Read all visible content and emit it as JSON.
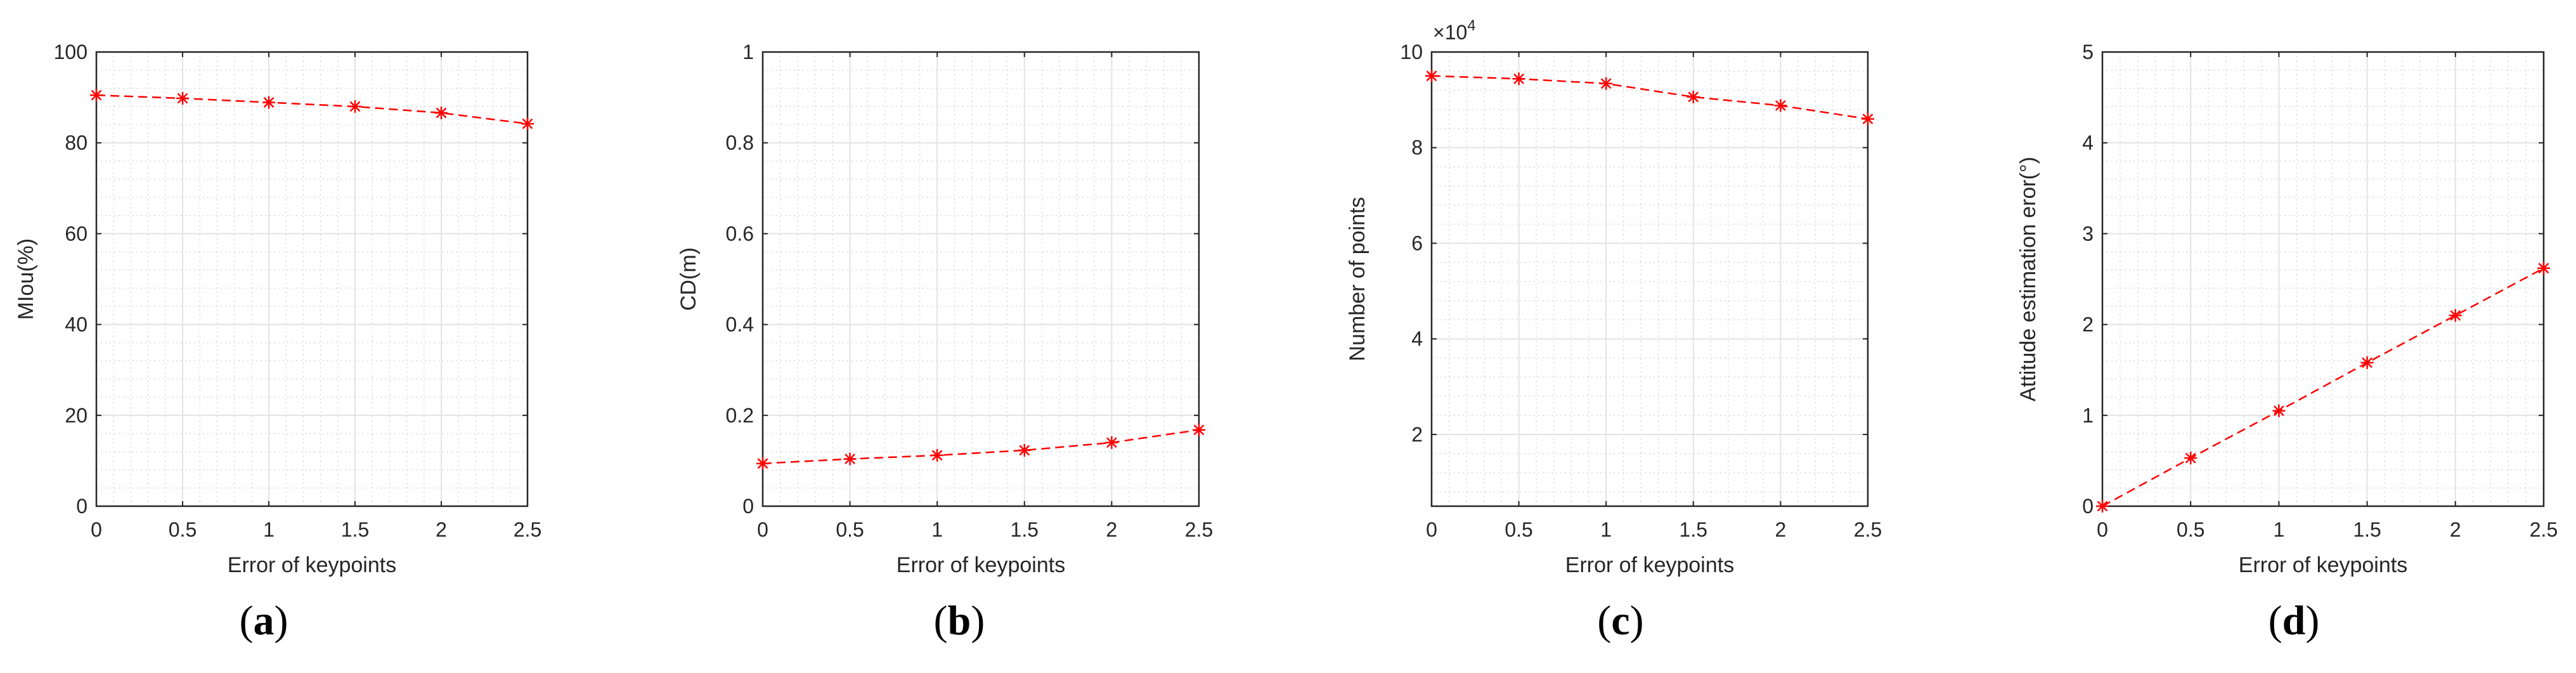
{
  "figure": {
    "series_color": "#ff0000",
    "panels": [
      "a",
      "b",
      "c",
      "d"
    ]
  },
  "chart_data": [
    {
      "type": "line",
      "panel": "a",
      "caption": "(a)",
      "caption_parts": [
        "(",
        "a",
        ")"
      ],
      "xlabel": "Error of keypoints",
      "ylabel": "MIou(%)",
      "x": [
        0,
        0.5,
        1,
        1.5,
        2,
        2.5
      ],
      "y": [
        90.5,
        89.8,
        88.9,
        88.0,
        86.6,
        84.2
      ],
      "xlim": [
        0,
        2.5
      ],
      "ylim": [
        0,
        100
      ],
      "xticks": [
        0,
        0.5,
        1,
        1.5,
        2,
        2.5
      ],
      "xtick_labels": [
        "0",
        "0.5",
        "1",
        "1.5",
        "2",
        "2.5"
      ],
      "yticks": [
        0,
        20,
        40,
        60,
        80,
        100
      ],
      "ytick_labels": [
        "0",
        "20",
        "40",
        "60",
        "80",
        "100"
      ],
      "exponent_label": "",
      "grid": true,
      "marker": "*",
      "line_style": "dashed"
    },
    {
      "type": "line",
      "panel": "b",
      "caption": "(b)",
      "caption_parts": [
        "(",
        "b",
        ")"
      ],
      "xlabel": "Error of keypoints",
      "ylabel": "CD(m)",
      "x": [
        0,
        0.5,
        1,
        1.5,
        2,
        2.5
      ],
      "y": [
        0.094,
        0.104,
        0.112,
        0.123,
        0.14,
        0.168
      ],
      "xlim": [
        0,
        2.5
      ],
      "ylim": [
        0,
        1
      ],
      "xticks": [
        0,
        0.5,
        1,
        1.5,
        2,
        2.5
      ],
      "xtick_labels": [
        "0",
        "0.5",
        "1",
        "1.5",
        "2",
        "2.5"
      ],
      "yticks": [
        0,
        0.2,
        0.4,
        0.6,
        0.8,
        1
      ],
      "ytick_labels": [
        "0",
        "0.2",
        "0.4",
        "0.6",
        "0.8",
        "1"
      ],
      "exponent_label": "",
      "grid": true,
      "marker": "*",
      "line_style": "dashed"
    },
    {
      "type": "line",
      "panel": "c",
      "caption": "(c)",
      "caption_parts": [
        "(",
        "c",
        ")"
      ],
      "xlabel": "Error of keypoints",
      "ylabel": "Number of points",
      "x": [
        0,
        0.5,
        1,
        1.5,
        2,
        2.5
      ],
      "y": [
        95000,
        94400,
        93400,
        90600,
        88800,
        86000
      ],
      "xlim": [
        0,
        2.5
      ],
      "ylim": [
        5000,
        100000
      ],
      "xticks": [
        0,
        0.5,
        1,
        1.5,
        2,
        2.5
      ],
      "xtick_labels": [
        "0",
        "0.5",
        "1",
        "1.5",
        "2",
        "2.5"
      ],
      "yticks": [
        20000,
        40000,
        60000,
        80000,
        100000
      ],
      "ytick_labels": [
        "2",
        "4",
        "6",
        "8",
        "10"
      ],
      "exponent_label": "×10",
      "exponent_power": "4",
      "grid": true,
      "marker": "*",
      "line_style": "dashed"
    },
    {
      "type": "line",
      "panel": "d",
      "caption": "(d)",
      "caption_parts": [
        "(",
        "d",
        ")"
      ],
      "xlabel": "Error of keypoints",
      "ylabel": "Attitude estimation eror(°)",
      "x": [
        0,
        0.5,
        1,
        1.5,
        2,
        2.5
      ],
      "y": [
        0,
        0.53,
        1.05,
        1.58,
        2.1,
        2.62
      ],
      "xlim": [
        0,
        2.5
      ],
      "ylim": [
        0,
        5
      ],
      "xticks": [
        0,
        0.5,
        1,
        1.5,
        2,
        2.5
      ],
      "xtick_labels": [
        "0",
        "0.5",
        "1",
        "1.5",
        "2",
        "2.5"
      ],
      "yticks": [
        0,
        1,
        2,
        3,
        4,
        5
      ],
      "ytick_labels": [
        "0",
        "1",
        "2",
        "3",
        "4",
        "5"
      ],
      "exponent_label": "",
      "grid": true,
      "marker": "*",
      "line_style": "dashed"
    }
  ]
}
